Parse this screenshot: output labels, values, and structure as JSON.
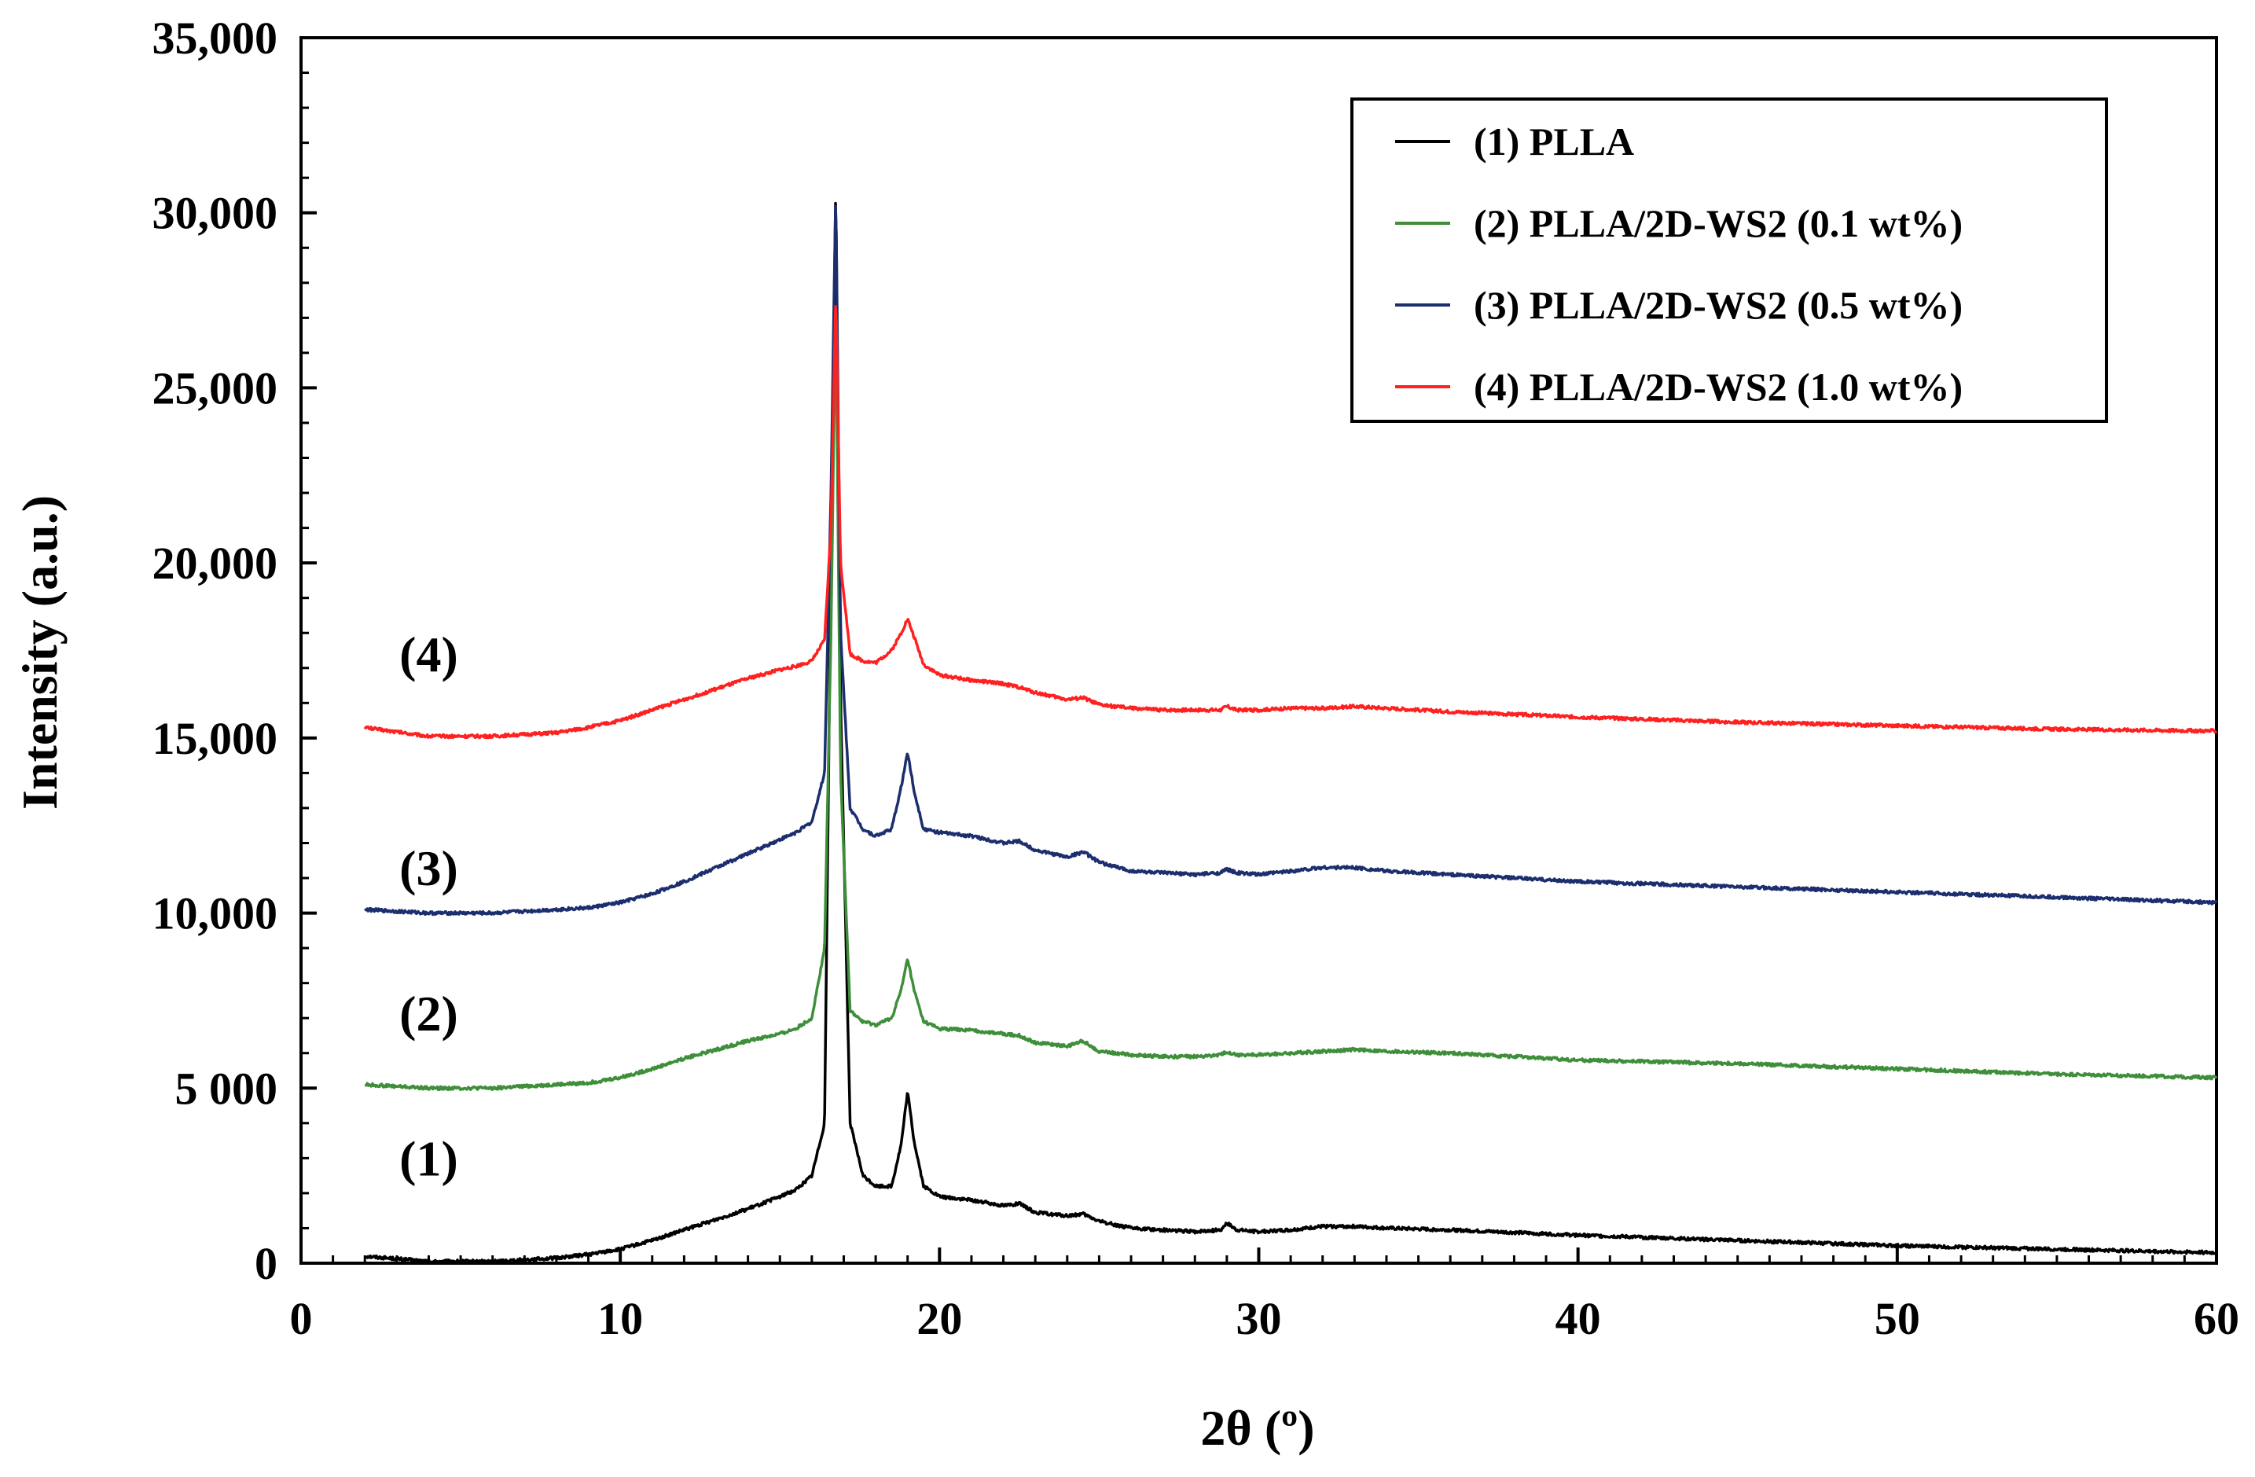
{
  "chart_data": {
    "type": "line",
    "title": "",
    "xlabel": "2θ (º)",
    "ylabel": "Intensity (a.u.)",
    "xlim": [
      0,
      60
    ],
    "ylim": [
      0,
      35000
    ],
    "x_ticks": [
      0,
      10,
      20,
      30,
      40,
      50,
      60
    ],
    "x_tick_labels": [
      "0",
      "10",
      "20",
      "30",
      "40",
      "50",
      "60"
    ],
    "y_ticks": [
      0,
      5000,
      10000,
      15000,
      20000,
      25000,
      30000,
      35000
    ],
    "y_tick_labels": [
      "0",
      "5 000",
      "10,000",
      "15,000",
      "20,000",
      "25,000",
      "30,000",
      "35,000"
    ],
    "grid": false,
    "legend_position": "top-right",
    "series": [
      {
        "name": "(1) PLLA",
        "curve_label": "(1)",
        "label_anchor": [
          4,
          2500
        ],
        "color": "#000000",
        "x": [
          2,
          4,
          6,
          8,
          9,
          10,
          11,
          12,
          13,
          14,
          15,
          15.5,
          16,
          16.4,
          16.6,
          16.75,
          16.9,
          17.2,
          17.6,
          18.0,
          18.5,
          18.8,
          19.0,
          19.2,
          19.5,
          20,
          21,
          22,
          22.5,
          23,
          24,
          24.5,
          25,
          26,
          27,
          28,
          28.8,
          29,
          29.3,
          30,
          31,
          32,
          33,
          34,
          36,
          40,
          45,
          50,
          55,
          60
        ],
        "y": [
          200,
          50,
          50,
          150,
          250,
          400,
          650,
          950,
          1250,
          1550,
          1900,
          2100,
          2500,
          4000,
          20000,
          30900,
          16000,
          4000,
          2500,
          2200,
          2200,
          3400,
          4900,
          3500,
          2200,
          1900,
          1800,
          1650,
          1700,
          1450,
          1350,
          1400,
          1200,
          1000,
          950,
          900,
          950,
          1150,
          950,
          900,
          950,
          1050,
          1050,
          1000,
          950,
          800,
          650,
          500,
          400,
          300
        ]
      },
      {
        "name": "(2) PLLA/2D-WS2 (0.1 wt%)",
        "curve_label": "(2)",
        "label_anchor": [
          4,
          6650
        ],
        "color": "#3e8e3a",
        "x": [
          2,
          4,
          6,
          8,
          9,
          10,
          11,
          12,
          13,
          14,
          15,
          15.5,
          16,
          16.4,
          16.6,
          16.75,
          16.9,
          17.2,
          17.6,
          18.0,
          18.5,
          18.8,
          19.0,
          19.2,
          19.5,
          20,
          21,
          22,
          22.5,
          23,
          24,
          24.5,
          25,
          26,
          27,
          28,
          28.8,
          29,
          29.3,
          30,
          31,
          32,
          33,
          34,
          36,
          40,
          45,
          50,
          55,
          60
        ],
        "y": [
          5100,
          5000,
          5000,
          5100,
          5150,
          5300,
          5550,
          5850,
          6100,
          6350,
          6550,
          6700,
          7000,
          9000,
          18000,
          27500,
          14000,
          7200,
          6900,
          6800,
          7000,
          7800,
          8700,
          7800,
          6900,
          6700,
          6650,
          6550,
          6500,
          6300,
          6200,
          6350,
          6050,
          5950,
          5900,
          5900,
          5950,
          6050,
          5950,
          5950,
          6000,
          6050,
          6100,
          6050,
          6000,
          5800,
          5700,
          5550,
          5400,
          5300
        ]
      },
      {
        "name": "(3) PLLA/2D-WS2 (0.5 wt%)",
        "curve_label": "(3)",
        "label_anchor": [
          4,
          10800
        ],
        "color": "#1c2e6e",
        "x": [
          2,
          4,
          6,
          8,
          9,
          10,
          11,
          12,
          13,
          14,
          15,
          15.5,
          16,
          16.4,
          16.6,
          16.75,
          16.9,
          17.2,
          17.6,
          18.0,
          18.5,
          18.8,
          19.0,
          19.2,
          19.5,
          20,
          21,
          22,
          22.5,
          23,
          24,
          24.5,
          25,
          26,
          27,
          28,
          28.8,
          29,
          29.3,
          30,
          31,
          32,
          33,
          34,
          36,
          40,
          45,
          50,
          55,
          60
        ],
        "y": [
          10100,
          10000,
          10000,
          10100,
          10150,
          10300,
          10550,
          10900,
          11300,
          11700,
          12100,
          12300,
          12600,
          14000,
          22000,
          30700,
          18000,
          13000,
          12400,
          12200,
          12400,
          13600,
          14600,
          13500,
          12400,
          12300,
          12200,
          12000,
          12050,
          11800,
          11600,
          11750,
          11450,
          11200,
          11150,
          11100,
          11150,
          11250,
          11150,
          11100,
          11200,
          11300,
          11300,
          11200,
          11100,
          10900,
          10750,
          10600,
          10450,
          10300
        ]
      },
      {
        "name": "(4) PLLA/2D-WS2 (1.0 wt%)",
        "curve_label": "(4)",
        "label_anchor": [
          4,
          16900
        ],
        "color": "#ff2020",
        "x": [
          2,
          4,
          6,
          8,
          9,
          10,
          11,
          12,
          13,
          14,
          15,
          15.5,
          16,
          16.4,
          16.6,
          16.75,
          16.9,
          17.2,
          17.6,
          18.0,
          18.5,
          18.8,
          19.0,
          19.2,
          19.5,
          20,
          21,
          22,
          22.5,
          23,
          24,
          24.5,
          25,
          26,
          27,
          28,
          28.8,
          29,
          29.3,
          30,
          31,
          32,
          33,
          34,
          36,
          40,
          45,
          50,
          55,
          60
        ],
        "y": [
          15300,
          15050,
          15050,
          15150,
          15300,
          15500,
          15800,
          16100,
          16400,
          16700,
          16950,
          17050,
          17200,
          17800,
          21000,
          27700,
          20000,
          17400,
          17200,
          17150,
          17500,
          18000,
          18400,
          17900,
          17100,
          16800,
          16650,
          16550,
          16450,
          16300,
          16100,
          16150,
          15950,
          15850,
          15800,
          15800,
          15800,
          15900,
          15800,
          15800,
          15850,
          15850,
          15900,
          15850,
          15750,
          15600,
          15450,
          15350,
          15250,
          15200
        ]
      }
    ]
  }
}
